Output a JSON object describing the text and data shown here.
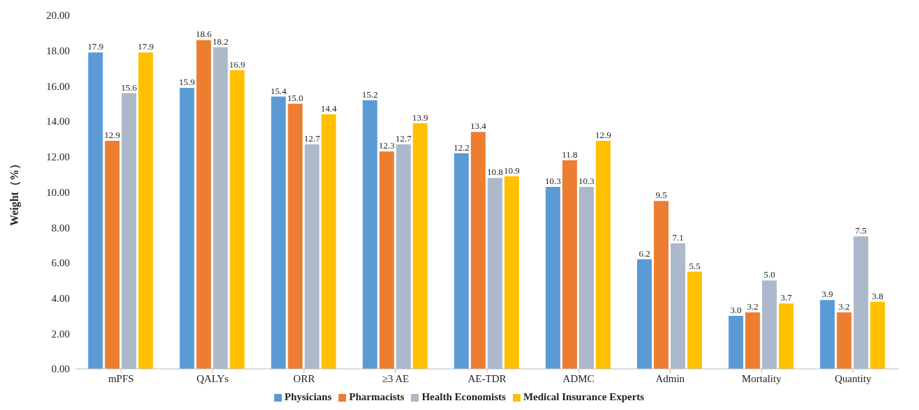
{
  "chart_data": {
    "type": "bar",
    "ylabel": "Weight（%）",
    "categories": [
      "mPFS",
      "QALYs",
      "ORR",
      "≥3 AE",
      "AE-TDR",
      "ADMC",
      "Admin",
      "Mortality",
      "Quantity"
    ],
    "series": [
      {
        "name": "Physicians",
        "color": "#5b9bd5",
        "values": [
          17.9,
          15.9,
          15.4,
          15.2,
          12.2,
          10.3,
          6.2,
          3.0,
          3.9
        ],
        "value_labels": [
          "17.9",
          "15.9",
          "15.4",
          "15.2",
          "12.2",
          "10.3",
          "6.2",
          "3.0",
          "3.9"
        ]
      },
      {
        "name": "Pharmacists",
        "color": "#ed7d31",
        "values": [
          12.9,
          18.6,
          15.0,
          12.3,
          13.4,
          11.8,
          9.5,
          3.2,
          3.2
        ],
        "value_labels": [
          "12.9",
          "18.6",
          "15.0",
          "12.3",
          "13.4",
          "11.8",
          "9.5",
          "3.2",
          "3.2"
        ]
      },
      {
        "name": "Health Economists",
        "color": "#acb9ca",
        "values": [
          15.6,
          18.2,
          12.7,
          12.7,
          10.8,
          10.3,
          7.1,
          5.0,
          7.5
        ],
        "value_labels": [
          "15.6",
          "18.2",
          "12.7",
          "12.7",
          "10.8",
          "10.3",
          "7.1",
          "5.0",
          "7.5"
        ]
      },
      {
        "name": "Medical Insurance Experts",
        "color": "#ffc000",
        "values": [
          17.9,
          16.9,
          14.4,
          13.9,
          10.9,
          12.9,
          5.5,
          3.7,
          3.8
        ],
        "value_labels": [
          "17.9",
          "16.9",
          "14.4",
          "13.9",
          "10.9",
          "12.9",
          "5.5",
          "3.7",
          "3.8"
        ]
      }
    ],
    "ylim": [
      0,
      20
    ],
    "yticks": [
      {
        "value": 0,
        "label": "0.00"
      },
      {
        "value": 2,
        "label": "2.00"
      },
      {
        "value": 4,
        "label": "4.00"
      },
      {
        "value": 6,
        "label": "6.00"
      },
      {
        "value": 8,
        "label": "8.00"
      },
      {
        "value": 10,
        "label": "10.00"
      },
      {
        "value": 12,
        "label": "12.00"
      },
      {
        "value": 14,
        "label": "14.00"
      },
      {
        "value": 16,
        "label": "16.00"
      },
      {
        "value": 18,
        "label": "18.00"
      },
      {
        "value": 20,
        "label": "20.00"
      }
    ],
    "grid": false,
    "legend": "bottom"
  }
}
